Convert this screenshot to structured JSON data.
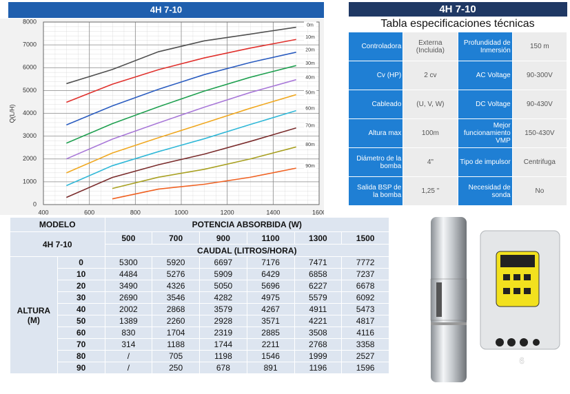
{
  "chart_data": {
    "type": "line",
    "title": "4H 7-10",
    "y_label": "Q(L/H)",
    "x": [
      500,
      700,
      900,
      1100,
      1300,
      1500
    ],
    "xlim": [
      400,
      1600
    ],
    "xticks": [
      400,
      600,
      800,
      1000,
      1200,
      1400,
      1600
    ],
    "ylim": [
      0,
      8000
    ],
    "yticks": [
      0,
      1000,
      2000,
      3000,
      4000,
      5000,
      6000,
      7000,
      8000
    ],
    "grid": true,
    "series": [
      {
        "name": "0m",
        "color": "#505050",
        "values": [
          5300,
          5920,
          6697,
          7176,
          7471,
          7772
        ]
      },
      {
        "name": "10m",
        "color": "#e0302c",
        "values": [
          4484,
          5276,
          5909,
          6429,
          6858,
          7237
        ]
      },
      {
        "name": "20m",
        "color": "#2a5cc0",
        "values": [
          3490,
          4326,
          5050,
          5696,
          6227,
          6678
        ]
      },
      {
        "name": "30m",
        "color": "#1fa050",
        "values": [
          2690,
          3546,
          4282,
          4975,
          5579,
          6092
        ]
      },
      {
        "name": "40m",
        "color": "#a878d8",
        "values": [
          2002,
          2868,
          3579,
          4267,
          4911,
          5473
        ]
      },
      {
        "name": "50m",
        "color": "#f0a820",
        "values": [
          1389,
          2260,
          2928,
          3571,
          4221,
          4817
        ]
      },
      {
        "name": "60m",
        "color": "#30b8d8",
        "values": [
          830,
          1704,
          2319,
          2885,
          3508,
          4116
        ]
      },
      {
        "name": "70m",
        "color": "#7a2c2c",
        "values": [
          314,
          1188,
          1744,
          2211,
          2768,
          3358
        ]
      },
      {
        "name": "80m",
        "color": "#a8a020",
        "values": [
          null,
          705,
          1198,
          1546,
          1999,
          2527
        ]
      },
      {
        "name": "90m",
        "color": "#f06020",
        "values": [
          null,
          250,
          678,
          891,
          1196,
          1596
        ]
      }
    ]
  },
  "spec_table": {
    "title": "4H 7-10",
    "subtitle": "Tabla especificaciones técnicas",
    "rows": [
      [
        "Controladora",
        "Externa (Incluida)",
        "Profundidad de Inmersión",
        "150 m"
      ],
      [
        "Cv (HP)",
        "2 cv",
        "AC Voltage",
        "90-300V"
      ],
      [
        "Cableado",
        "(U, V, W)",
        "DC Voltage",
        "90-430V"
      ],
      [
        "Altura max",
        "100m",
        "Mejor funcionamiento VMP",
        "150-430V"
      ],
      [
        "Diámetro de la bomba",
        "4\"",
        "Tipo de impulsor",
        "Centrifuga"
      ],
      [
        "Salida BSP de la bomba",
        "1,25 \"",
        "Necesidad de sonda",
        "No"
      ]
    ]
  },
  "data_table": {
    "model_header": "MODELO",
    "power_header": "POTENCIA ABSORBIDA (W)",
    "model": "4H 7-10",
    "flow_header": "CAUDAL (LITROS/HORA)",
    "height_header": "ALTURA (M)",
    "heights": [
      0,
      10,
      20,
      30,
      40,
      50,
      60,
      70,
      80,
      90
    ],
    "rows": [
      [
        5300,
        5920,
        6697,
        7176,
        7471,
        7772
      ],
      [
        4484,
        5276,
        5909,
        6429,
        6858,
        7237
      ],
      [
        3490,
        4326,
        5050,
        5696,
        6227,
        6678
      ],
      [
        2690,
        3546,
        4282,
        4975,
        5579,
        6092
      ],
      [
        2002,
        2868,
        3579,
        4267,
        4911,
        5473
      ],
      [
        1389,
        2260,
        2928,
        3571,
        4221,
        4817
      ],
      [
        830,
        1704,
        2319,
        2885,
        3508,
        4116
      ],
      [
        314,
        1188,
        1744,
        2211,
        2768,
        3358
      ],
      [
        "/",
        705,
        1198,
        1546,
        1999,
        2527
      ],
      [
        "/",
        250,
        678,
        891,
        1196,
        1596
      ]
    ]
  },
  "product": {
    "label": "6"
  }
}
